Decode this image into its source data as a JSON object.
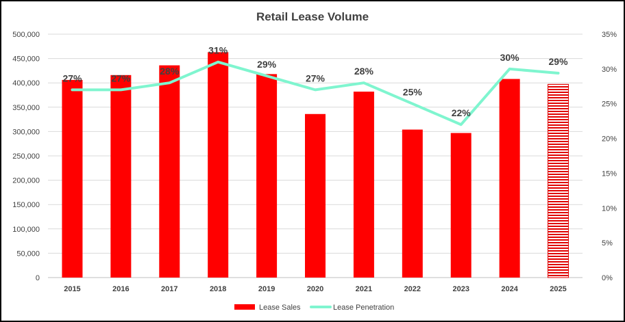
{
  "chart_data": {
    "type": "bar",
    "title": "Retail Lease Volume",
    "categories": [
      "2015",
      "2016",
      "2017",
      "2018",
      "2019",
      "2020",
      "2021",
      "2022",
      "2023",
      "2024",
      "2025"
    ],
    "series": [
      {
        "name": "Lease Sales",
        "type": "bar",
        "axis": "left",
        "color": "#ff0000",
        "values": [
          406000,
          416000,
          436000,
          463000,
          418000,
          336000,
          382000,
          304000,
          297000,
          408000,
          397000
        ],
        "hatched_categories": [
          "2025"
        ]
      },
      {
        "name": "Lease Penetration",
        "type": "line",
        "axis": "right",
        "color": "#7ff5cf",
        "values": [
          27,
          27,
          28,
          31,
          29,
          27,
          28,
          25,
          22,
          30,
          29.4
        ],
        "labels": [
          "27%",
          "27%",
          "28%",
          "31%",
          "29%",
          "27%",
          "28%",
          "25%",
          "22%",
          "30%",
          "29%"
        ]
      }
    ],
    "y_left": {
      "ylim": [
        0,
        500000
      ],
      "ticks": [
        "0",
        "50,000",
        "100,000",
        "150,000",
        "200,000",
        "250,000",
        "300,000",
        "350,000",
        "400,000",
        "450,000",
        "500,000"
      ]
    },
    "y_right": {
      "ylim": [
        0,
        35
      ],
      "ticks": [
        "0%",
        "5%",
        "10%",
        "15%",
        "20%",
        "25%",
        "30%",
        "35%"
      ]
    },
    "grid": true,
    "legend": "bottom"
  }
}
